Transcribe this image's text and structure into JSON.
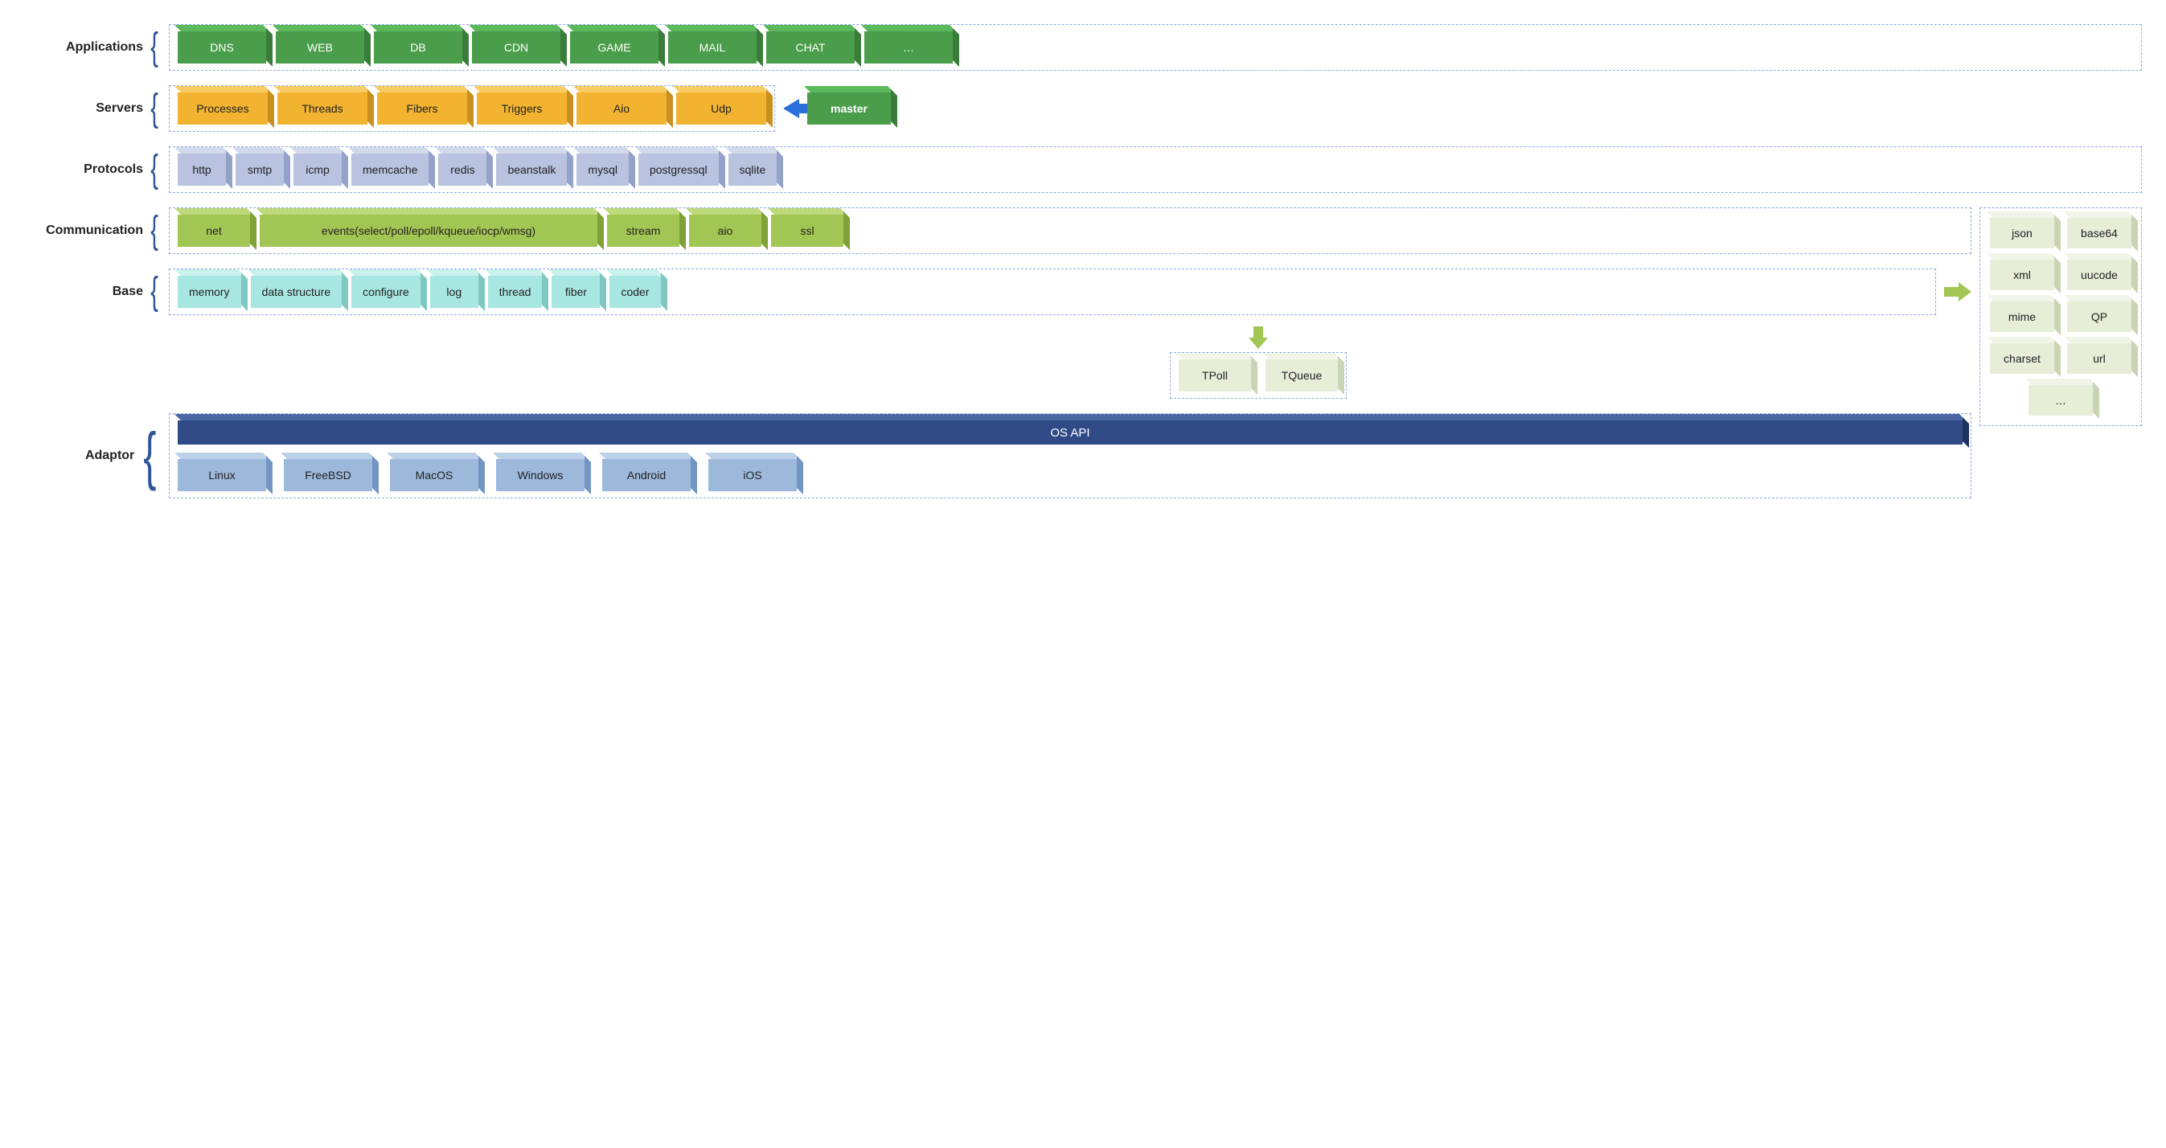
{
  "labels": {
    "applications": "Applications",
    "servers": "Servers",
    "protocols": "Protocols",
    "communication": "Communication",
    "base": "Base",
    "adaptor": "Adaptor"
  },
  "applications": [
    "DNS",
    "WEB",
    "DB",
    "CDN",
    "GAME",
    "MAIL",
    "CHAT",
    "…"
  ],
  "servers": [
    "Processes",
    "Threads",
    "Fibers",
    "Triggers",
    "Aio",
    "Udp"
  ],
  "servers_master": "master",
  "protocols": [
    "http",
    "smtp",
    "icmp",
    "memcache",
    "redis",
    "beanstalk",
    "mysql",
    "postgressql",
    "sqlite"
  ],
  "communication": {
    "items": [
      "net",
      "events(select/poll/epoll/kqueue/iocp/wmsg)",
      "stream",
      "aio",
      "ssl"
    ],
    "wide_index": 1
  },
  "base": [
    "memory",
    "data structure",
    "configure",
    "log",
    "thread",
    "fiber",
    "coder"
  ],
  "thread_children": [
    "TPoll",
    "TQueue"
  ],
  "coder_children": [
    "json",
    "base64",
    "xml",
    "uucode",
    "mime",
    "QP",
    "charset",
    "url",
    "…"
  ],
  "osapi": "OS API",
  "platforms": [
    "Linux",
    "FreeBSD",
    "MacOS",
    "Windows",
    "Android",
    "iOS"
  ],
  "colors": {
    "green": "#4a9d4a",
    "orange": "#f2b430",
    "slate": "#b9c3e0",
    "olive": "#a2c653",
    "cyan": "#a8e6e1",
    "pale": "#e6eed8",
    "navy": "#2f4a87",
    "steel": "#9cb8db",
    "dash": "#8faadc",
    "arrow_blue": "#2a6fdb"
  },
  "box_widths": {
    "applications": 110,
    "servers": 112,
    "servers_master": 104,
    "communication_default": 90,
    "communication_wide": 420,
    "thread_children": 90,
    "platforms_min": 110
  },
  "typography": {
    "label_fontsize": 16,
    "box_fontsize": 14,
    "font_family": "Arial"
  }
}
